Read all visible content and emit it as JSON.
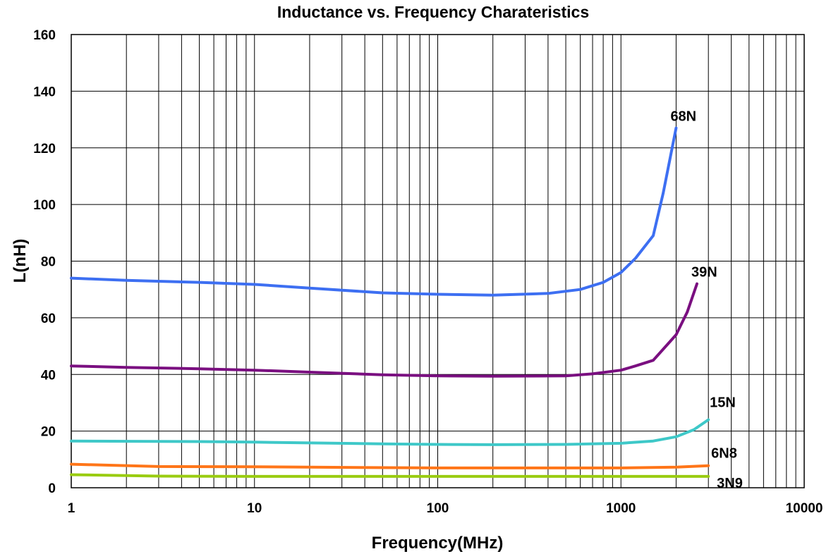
{
  "chart_data": {
    "type": "line",
    "title": "Inductance vs. Frequency Charateristics",
    "xlabel": "Frequency(MHz)",
    "ylabel": "L(nH)",
    "xscale": "log",
    "xlim": [
      1,
      10000
    ],
    "ylim": [
      0,
      160
    ],
    "xticks": [
      "1",
      "10",
      "100",
      "1000",
      "10000"
    ],
    "yticks": [
      "0",
      "20",
      "40",
      "60",
      "80",
      "100",
      "120",
      "140",
      "160"
    ],
    "grid": true,
    "legend": "labels at line ends",
    "series": [
      {
        "name": "68N",
        "color": "#3d6ff2",
        "x": [
          1,
          2,
          5,
          10,
          20,
          50,
          100,
          200,
          400,
          600,
          800,
          1000,
          1200,
          1500,
          1700,
          2000
        ],
        "y": [
          74,
          73.2,
          72.5,
          71.8,
          70.5,
          68.8,
          68.3,
          68,
          68.6,
          70,
          72.5,
          76,
          81,
          89,
          104,
          127
        ]
      },
      {
        "name": "39N",
        "color": "#7a0f80",
        "x": [
          1,
          2,
          5,
          10,
          20,
          50,
          100,
          200,
          500,
          700,
          1000,
          1200,
          1500,
          2000,
          2300,
          2600
        ],
        "y": [
          43,
          42.5,
          42,
          41.5,
          40.8,
          39.9,
          39.5,
          39.4,
          39.5,
          40.2,
          41.5,
          43,
          45,
          54,
          62,
          72
        ]
      },
      {
        "name": "15N",
        "color": "#3ec8c8",
        "x": [
          1,
          5,
          10,
          50,
          100,
          200,
          500,
          1000,
          1500,
          2000,
          2500,
          3000
        ],
        "y": [
          16.5,
          16.3,
          16.1,
          15.5,
          15.3,
          15.2,
          15.3,
          15.7,
          16.5,
          18,
          20.5,
          24
        ]
      },
      {
        "name": "6N8",
        "color": "#ff7518",
        "x": [
          1,
          3,
          10,
          100,
          1000,
          2000,
          3000
        ],
        "y": [
          8.3,
          7.5,
          7.4,
          7,
          7,
          7.3,
          7.8
        ]
      },
      {
        "name": "3N9",
        "color": "#99cc10",
        "x": [
          1,
          3,
          10,
          100,
          1000,
          3000
        ],
        "y": [
          4.6,
          4.1,
          4,
          4,
          4,
          4
        ]
      }
    ]
  }
}
